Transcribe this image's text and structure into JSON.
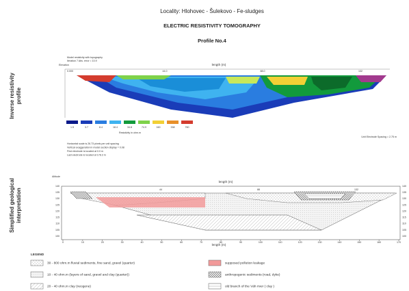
{
  "header": {
    "locality": "Locality: Hlohovec - Šulekovo - Fe-sludges",
    "title": "ELECTRIC RESISTIVITY TOMOGRAPHY",
    "profile": "Profile No.4"
  },
  "side_labels": {
    "inverse": [
      "Inverse resistivity",
      "profile"
    ],
    "geology": [
      "Simplified geological",
      "interpretation"
    ]
  },
  "inverse_profile": {
    "model_title": "Model resistivity with topography",
    "iteration": "Iteration 7 Abs. error = 10.9",
    "elevation": "Elevation",
    "length_label": "length (m)",
    "scale_marks": [
      "0.000",
      "44.0",
      "88.0",
      "132"
    ],
    "color_scale_values": [
      1.5,
      3.7,
      8.4,
      18.4,
      34.8,
      74.9,
      160,
      338,
      760
    ],
    "color_scale_title": "Resistivity in ohm.m",
    "spacing_note": "Unit Electrode Spacing = 2.75 m",
    "notes": [
      "Horizontal scale is 26.73 pixels per unit spacing",
      "Vertical exaggeration in model section display = 0.08",
      "First electrode is located at 0.0 m",
      "Last electrode is located at 178.3 m"
    ]
  },
  "geology": {
    "altitude": "Altitude",
    "length_label": "length (m)",
    "top_marks": [
      "44",
      "88",
      "132"
    ],
    "x_ticks": [
      0,
      10,
      20,
      30,
      40,
      50,
      60,
      70,
      80,
      90,
      100,
      110,
      120,
      130,
      140,
      150,
      160,
      170
    ],
    "y_ticks": [
      140,
      135,
      130,
      125,
      120,
      115,
      110,
      105,
      100
    ]
  },
  "legend": {
    "title": "LEGEND",
    "items": [
      "30 - 800 ohm.m fluvial sediments, fine sand, gravel (quarter)",
      "10 - 40 ohm.m (layers of sand, gravel and clay (quarter))",
      "20 - 40 ohm.m clay (neogene)",
      "supposed pollution leakage",
      "anthropogenic sediments (road, dyke)",
      "old branch of the Váh river ( clay )"
    ]
  }
}
